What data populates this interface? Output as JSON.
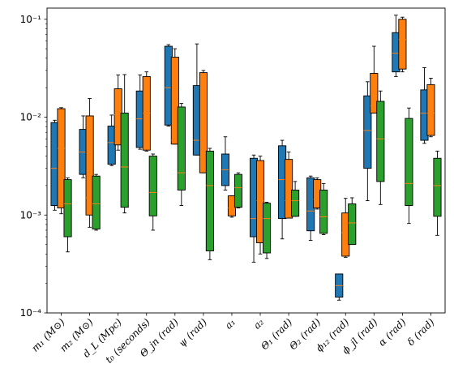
{
  "chart_data": {
    "type": "box",
    "yscale": "log",
    "ylim": [
      0.0001,
      0.13
    ],
    "y_ticks": [
      0.0001,
      0.001,
      0.01,
      0.1
    ],
    "y_tick_labels": [
      "10⁻⁴",
      "10⁻³",
      "10⁻²",
      "10⁻¹"
    ],
    "grid": false,
    "categories": [
      "m₁ (M⊙)",
      "m₂ (M⊙)",
      "d_L (Mpc)",
      "t₀ (seconds)",
      "Θ_jn (rad)",
      "ψ (rad)",
      "a₁",
      "a₂",
      "Θ₁ (rad)",
      "Θ₂ (rad)",
      "ϕ₁₂ (rad)",
      "ϕ_jl (rad)",
      "α (rad)",
      "δ (rad)"
    ],
    "series": [
      {
        "color": "#1f77b4",
        "boxes": [
          {
            "whislo": 0.00112,
            "q1": 0.00125,
            "med": 0.003,
            "q3": 0.0088,
            "whishi": 0.0093
          },
          {
            "whislo": 0.0024,
            "q1": 0.0026,
            "med": 0.0044,
            "q3": 0.0075,
            "whishi": 0.0103
          },
          {
            "whislo": 0.0032,
            "q1": 0.0033,
            "med": 0.0055,
            "q3": 0.0081,
            "whishi": 0.0105
          },
          {
            "whislo": 0.0047,
            "q1": 0.0049,
            "med": 0.0096,
            "q3": 0.0185,
            "whishi": 0.027
          },
          {
            "whislo": 0.0081,
            "q1": 0.0083,
            "med": 0.02,
            "q3": 0.053,
            "whishi": 0.055
          },
          {
            "whislo": 0.0041,
            "q1": 0.0041,
            "med": 0.0058,
            "q3": 0.021,
            "whishi": 0.056
          },
          {
            "whislo": 0.0018,
            "q1": 0.002,
            "med": 0.0029,
            "q3": 0.0042,
            "whishi": 0.0063
          },
          {
            "whislo": 0.00033,
            "q1": 0.0006,
            "med": 0.00092,
            "q3": 0.0038,
            "whishi": 0.0041
          },
          {
            "whislo": 0.00057,
            "q1": 0.00092,
            "med": 0.0023,
            "q3": 0.0051,
            "whishi": 0.0058
          },
          {
            "whislo": 0.00055,
            "q1": 0.00069,
            "med": 0.0011,
            "q3": 0.0024,
            "whishi": 0.0025
          },
          {
            "whislo": 0.000135,
            "q1": 0.000145,
            "med": 0.00019,
            "q3": 0.00025,
            "whishi": 0.00025
          },
          {
            "whislo": 0.0014,
            "q1": 0.003,
            "med": 0.0073,
            "q3": 0.0165,
            "whishi": 0.023
          },
          {
            "whislo": 0.026,
            "q1": 0.029,
            "med": 0.045,
            "q3": 0.073,
            "whishi": 0.11
          },
          {
            "whislo": 0.0054,
            "q1": 0.0058,
            "med": 0.011,
            "q3": 0.019,
            "whishi": 0.032
          }
        ]
      },
      {
        "color": "#ff7f0e",
        "boxes": [
          {
            "whislo": 0.00103,
            "q1": 0.00118,
            "med": 0.0048,
            "q3": 0.0122,
            "whishi": 0.0125
          },
          {
            "whislo": 0.00075,
            "q1": 0.001,
            "med": 0.0015,
            "q3": 0.0103,
            "whishi": 0.0155
          },
          {
            "whislo": 0.0046,
            "q1": 0.0052,
            "med": 0.0106,
            "q3": 0.0195,
            "whishi": 0.027
          },
          {
            "whislo": 0.0045,
            "q1": 0.0046,
            "med": 0.011,
            "q3": 0.026,
            "whishi": 0.029
          },
          {
            "whislo": 0.0053,
            "q1": 0.0053,
            "med": 0.0058,
            "q3": 0.041,
            "whishi": 0.05
          },
          {
            "whislo": 0.0027,
            "q1": 0.0027,
            "med": 0.0039,
            "q3": 0.0285,
            "whishi": 0.03
          },
          {
            "whislo": 0.00095,
            "q1": 0.00098,
            "med": 0.00118,
            "q3": 0.00157,
            "whishi": 0.00157
          },
          {
            "whislo": 0.0004,
            "q1": 0.00052,
            "med": 0.0014,
            "q3": 0.0036,
            "whishi": 0.004
          },
          {
            "whislo": 0.00093,
            "q1": 0.00093,
            "med": 0.0014,
            "q3": 0.0037,
            "whishi": 0.0044
          },
          {
            "whislo": 0.00115,
            "q1": 0.00118,
            "med": 0.00145,
            "q3": 0.0023,
            "whishi": 0.0024
          },
          {
            "whislo": 0.00037,
            "q1": 0.00038,
            "med": 0.00066,
            "q3": 0.00105,
            "whishi": 0.00148
          },
          {
            "whislo": 0.011,
            "q1": 0.011,
            "med": 0.013,
            "q3": 0.028,
            "whishi": 0.053
          },
          {
            "whislo": 0.029,
            "q1": 0.031,
            "med": 0.062,
            "q3": 0.1,
            "whishi": 0.105
          },
          {
            "whislo": 0.0063,
            "q1": 0.0065,
            "med": 0.011,
            "q3": 0.0215,
            "whishi": 0.025
          }
        ]
      },
      {
        "color": "#2ca02c",
        "boxes": [
          {
            "whislo": 0.00042,
            "q1": 0.0006,
            "med": 0.0013,
            "q3": 0.0023,
            "whishi": 0.0024
          },
          {
            "whislo": 0.0007,
            "q1": 0.00072,
            "med": 0.0013,
            "q3": 0.0025,
            "whishi": 0.0026
          },
          {
            "whislo": 0.00105,
            "q1": 0.0012,
            "med": 0.0031,
            "q3": 0.011,
            "whishi": 0.0272
          },
          {
            "whislo": 0.0007,
            "q1": 0.00098,
            "med": 0.0017,
            "q3": 0.004,
            "whishi": 0.0042
          },
          {
            "whislo": 0.00125,
            "q1": 0.0018,
            "med": 0.0027,
            "q3": 0.0127,
            "whishi": 0.0138
          },
          {
            "whislo": 0.00035,
            "q1": 0.00043,
            "med": 0.002,
            "q3": 0.0045,
            "whishi": 0.0048
          },
          {
            "whislo": 0.00118,
            "q1": 0.0012,
            "med": 0.0019,
            "q3": 0.0026,
            "whishi": 0.0027
          },
          {
            "whislo": 0.00036,
            "q1": 0.00041,
            "med": 0.00092,
            "q3": 0.00132,
            "whishi": 0.00135
          },
          {
            "whislo": 0.00097,
            "q1": 0.00097,
            "med": 0.0014,
            "q3": 0.0018,
            "whishi": 0.0022
          },
          {
            "whislo": 0.00063,
            "q1": 0.00065,
            "med": 0.00096,
            "q3": 0.0018,
            "whishi": 0.0021
          },
          {
            "whislo": 0.0005,
            "q1": 0.0005,
            "med": 0.00083,
            "q3": 0.0013,
            "whishi": 0.0015
          },
          {
            "whislo": 0.00128,
            "q1": 0.0022,
            "med": 0.006,
            "q3": 0.0145,
            "whishi": 0.0185
          },
          {
            "whislo": 0.00082,
            "q1": 0.00125,
            "med": 0.0021,
            "q3": 0.0097,
            "whishi": 0.0124
          },
          {
            "whislo": 0.00062,
            "q1": 0.00097,
            "med": 0.002,
            "q3": 0.0038,
            "whishi": 0.0045
          }
        ]
      }
    ],
    "median_color": "#ff7f0e"
  }
}
